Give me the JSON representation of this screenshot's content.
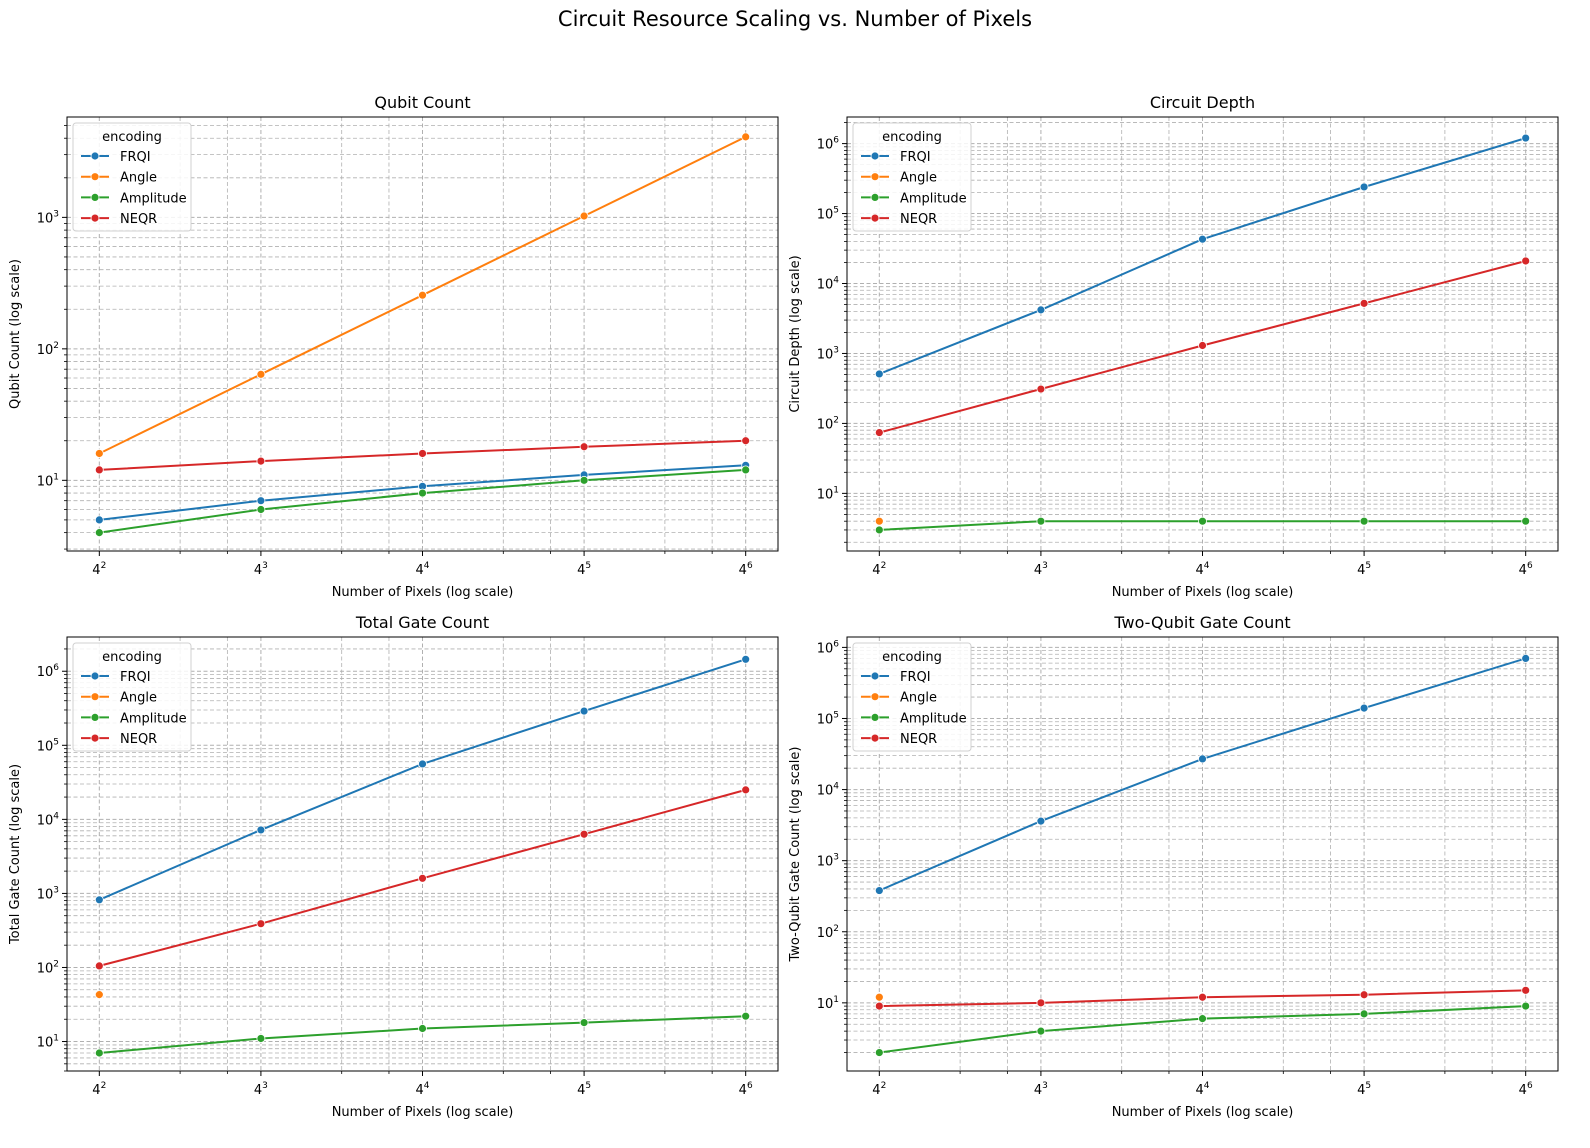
{
  "figure": {
    "title": "Circuit Resource Scaling vs. Number of Pixels"
  },
  "colors": {
    "FRQI": "#1f77b4",
    "Angle": "#ff7f0e",
    "Amplitude": "#2ca02c",
    "NEQR": "#d62728",
    "grid": "#b0b0b0"
  },
  "chart_data": [
    {
      "type": "line",
      "title": "Qubit Count",
      "xlabel": "Number of Pixels (log scale)",
      "ylabel": "Qubit Count (log scale)",
      "x": [
        16,
        64,
        256,
        1024,
        4096
      ],
      "x_tick_labels": [
        {
          "base": "4",
          "exp": "2"
        },
        {
          "base": "4",
          "exp": "3"
        },
        {
          "base": "4",
          "exp": "4"
        },
        {
          "base": "4",
          "exp": "5"
        },
        {
          "base": "4",
          "exp": "6"
        }
      ],
      "x_scale": "log4",
      "y_scale": "log10",
      "ylim": [
        2.9,
        5800
      ],
      "y_tick_labels": [
        {
          "base": "10",
          "exp": "1",
          "value": 10
        },
        {
          "base": "10",
          "exp": "2",
          "value": 100
        },
        {
          "base": "10",
          "exp": "3",
          "value": 1000
        }
      ],
      "grid": "both, dashed",
      "legend": {
        "title": "encoding",
        "placement": "upper left"
      },
      "series": [
        {
          "name": "FRQI",
          "values": [
            5,
            7,
            9,
            11,
            13
          ]
        },
        {
          "name": "Angle",
          "values": [
            16,
            64,
            256,
            1024,
            4096
          ]
        },
        {
          "name": "Amplitude",
          "values": [
            4,
            6,
            8,
            10,
            12
          ]
        },
        {
          "name": "NEQR",
          "values": [
            12,
            14,
            16,
            18,
            20
          ]
        }
      ]
    },
    {
      "type": "line",
      "title": "Circuit Depth",
      "xlabel": "Number of Pixels (log scale)",
      "ylabel": "Circuit Depth (log scale)",
      "x": [
        16,
        64,
        256,
        1024,
        4096
      ],
      "x_tick_labels": [
        {
          "base": "4",
          "exp": "2"
        },
        {
          "base": "4",
          "exp": "3"
        },
        {
          "base": "4",
          "exp": "4"
        },
        {
          "base": "4",
          "exp": "5"
        },
        {
          "base": "4",
          "exp": "6"
        }
      ],
      "x_scale": "log4",
      "y_scale": "log10",
      "ylim": [
        1.5,
        2400000
      ],
      "y_tick_labels": [
        {
          "base": "10",
          "exp": "1",
          "value": 10
        },
        {
          "base": "10",
          "exp": "2",
          "value": 100
        },
        {
          "base": "10",
          "exp": "3",
          "value": 1000
        },
        {
          "base": "10",
          "exp": "4",
          "value": 10000
        },
        {
          "base": "10",
          "exp": "5",
          "value": 100000
        },
        {
          "base": "10",
          "exp": "6",
          "value": 1000000
        }
      ],
      "grid": "both, dashed",
      "legend": {
        "title": "encoding",
        "placement": "upper left"
      },
      "series": [
        {
          "name": "FRQI",
          "values": [
            510,
            4200,
            43000,
            240000,
            1200000
          ]
        },
        {
          "name": "Angle",
          "values": [
            4,
            null,
            null,
            null,
            null
          ]
        },
        {
          "name": "Amplitude",
          "values": [
            3,
            4,
            4,
            4,
            4
          ]
        },
        {
          "name": "NEQR",
          "values": [
            74,
            310,
            1300,
            5200,
            21000
          ]
        }
      ]
    },
    {
      "type": "line",
      "title": "Total Gate Count",
      "xlabel": "Number of Pixels (log scale)",
      "ylabel": "Total Gate Count (log scale)",
      "x": [
        16,
        64,
        256,
        1024,
        4096
      ],
      "x_tick_labels": [
        {
          "base": "4",
          "exp": "2"
        },
        {
          "base": "4",
          "exp": "3"
        },
        {
          "base": "4",
          "exp": "4"
        },
        {
          "base": "4",
          "exp": "5"
        },
        {
          "base": "4",
          "exp": "6"
        }
      ],
      "x_scale": "log4",
      "y_scale": "log10",
      "ylim": [
        4,
        2900000
      ],
      "y_tick_labels": [
        {
          "base": "10",
          "exp": "1",
          "value": 10
        },
        {
          "base": "10",
          "exp": "2",
          "value": 100
        },
        {
          "base": "10",
          "exp": "3",
          "value": 1000
        },
        {
          "base": "10",
          "exp": "4",
          "value": 10000
        },
        {
          "base": "10",
          "exp": "5",
          "value": 100000
        },
        {
          "base": "10",
          "exp": "6",
          "value": 1000000
        }
      ],
      "grid": "both, dashed",
      "legend": {
        "title": "encoding",
        "placement": "upper left"
      },
      "series": [
        {
          "name": "FRQI",
          "values": [
            820,
            7200,
            56000,
            290000,
            1450000
          ]
        },
        {
          "name": "Angle",
          "values": [
            43,
            null,
            null,
            null,
            null
          ]
        },
        {
          "name": "Amplitude",
          "values": [
            7,
            11,
            15,
            18,
            22
          ]
        },
        {
          "name": "NEQR",
          "values": [
            105,
            390,
            1600,
            6300,
            25000
          ]
        }
      ]
    },
    {
      "type": "line",
      "title": "Two-Qubit Gate Count",
      "xlabel": "Number of Pixels (log scale)",
      "ylabel": "Two-Qubit Gate Count (log scale)",
      "x": [
        16,
        64,
        256,
        1024,
        4096
      ],
      "x_tick_labels": [
        {
          "base": "4",
          "exp": "2"
        },
        {
          "base": "4",
          "exp": "3"
        },
        {
          "base": "4",
          "exp": "4"
        },
        {
          "base": "4",
          "exp": "5"
        },
        {
          "base": "4",
          "exp": "6"
        }
      ],
      "x_scale": "log4",
      "y_scale": "log10",
      "ylim": [
        1.1,
        1400000
      ],
      "y_tick_labels": [
        {
          "base": "10",
          "exp": "1",
          "value": 10
        },
        {
          "base": "10",
          "exp": "2",
          "value": 100
        },
        {
          "base": "10",
          "exp": "3",
          "value": 1000
        },
        {
          "base": "10",
          "exp": "4",
          "value": 10000
        },
        {
          "base": "10",
          "exp": "5",
          "value": 100000
        },
        {
          "base": "10",
          "exp": "6",
          "value": 1000000
        }
      ],
      "grid": "both, dashed",
      "legend": {
        "title": "encoding",
        "placement": "upper left"
      },
      "series": [
        {
          "name": "FRQI",
          "values": [
            380,
            3600,
            27000,
            140000,
            700000
          ]
        },
        {
          "name": "Angle",
          "values": [
            12,
            null,
            null,
            null,
            null
          ]
        },
        {
          "name": "Amplitude",
          "values": [
            2,
            4,
            6,
            7,
            9
          ]
        },
        {
          "name": "NEQR",
          "values": [
            9,
            10,
            12,
            13,
            15
          ]
        }
      ]
    }
  ]
}
